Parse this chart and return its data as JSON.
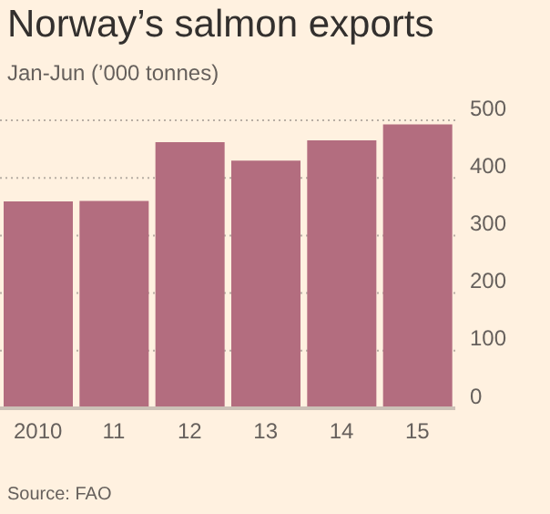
{
  "chart_data": {
    "type": "bar",
    "title": "Norway’s salmon exports",
    "subtitle": "Jan-Jun (’000 tonnes)",
    "categories": [
      "2010",
      "11",
      "12",
      "13",
      "14",
      "15"
    ],
    "values": [
      359,
      360,
      462,
      430,
      465,
      493
    ],
    "color": "#b36d7f",
    "ylim": [
      0,
      500
    ],
    "yticks": [
      0,
      100,
      200,
      300,
      400,
      500
    ],
    "grid": "y",
    "annotations": [
      "Source: FAO"
    ]
  }
}
